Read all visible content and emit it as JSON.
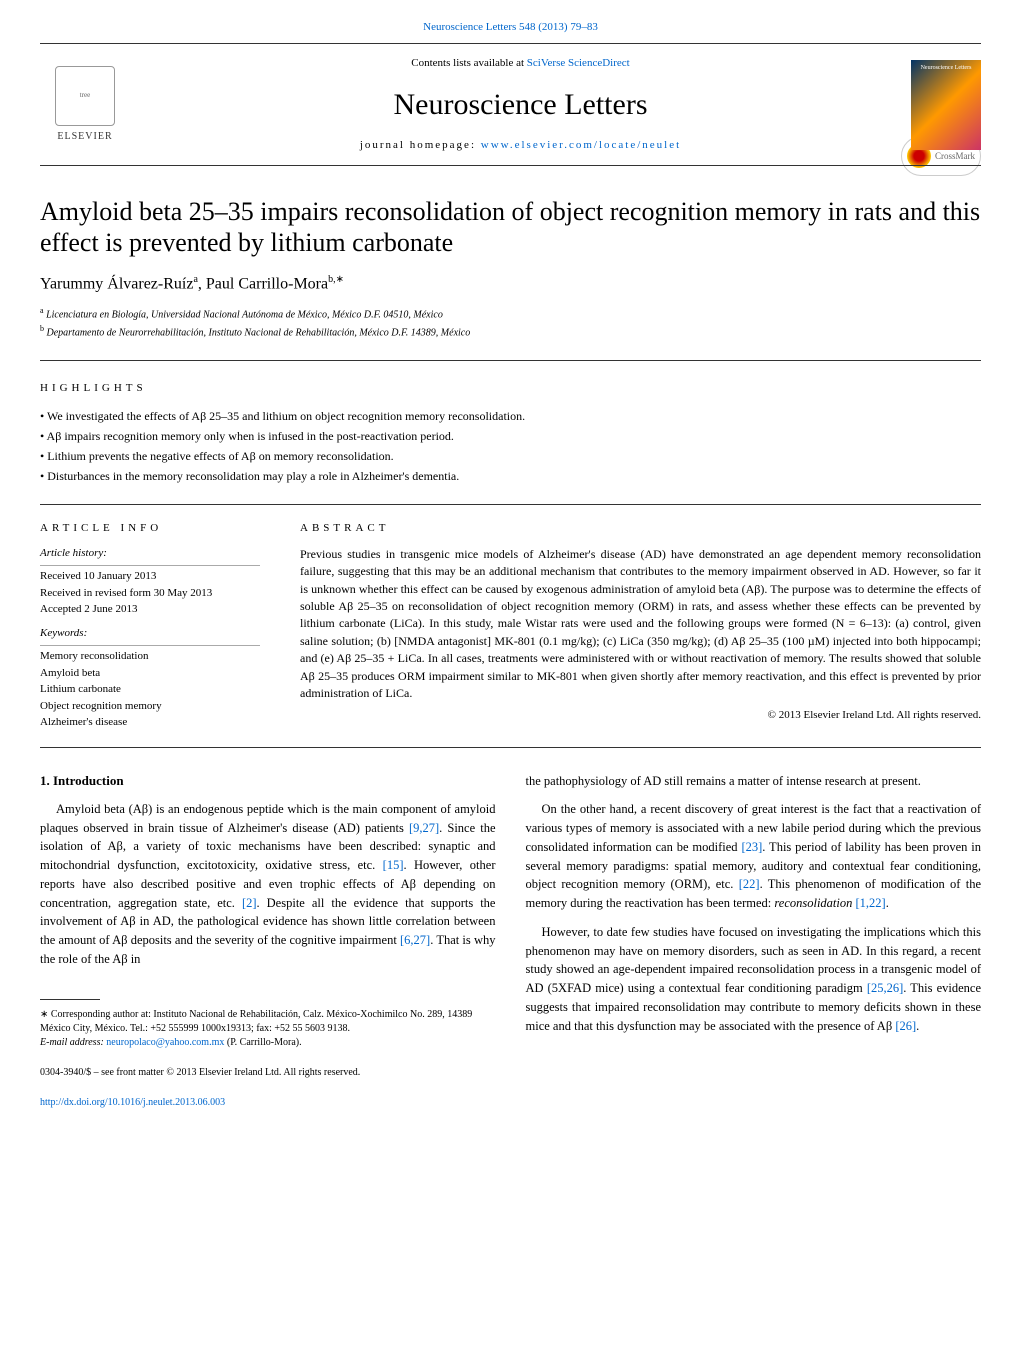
{
  "header": {
    "citation": "Neuroscience Letters 548 (2013) 79–83",
    "contents_prefix": "Contents lists available at ",
    "contents_link": "SciVerse ScienceDirect",
    "journal_title": "Neuroscience Letters",
    "homepage_prefix": "journal homepage: ",
    "homepage_url": "www.elsevier.com/locate/neulet",
    "elsevier_label": "ELSEVIER",
    "cover_label": "Neuroscience Letters",
    "crossmark_label": "CrossMark"
  },
  "article": {
    "title": "Amyloid beta 25–35 impairs reconsolidation of object recognition memory in rats and this effect is prevented by lithium carbonate",
    "authors": "Yarummy Álvarez-Ruíz",
    "author_a_sup": "a",
    "author_sep": ", ",
    "author_b": "Paul Carrillo-Mora",
    "author_b_sup": "b,∗",
    "affil_a_sup": "a",
    "affil_a": " Licenciatura en Biología, Universidad Nacional Autónoma de México, México D.F. 04510, México",
    "affil_b_sup": "b",
    "affil_b": " Departamento de Neurorrehabilitación, Instituto Nacional de Rehabilitación, México D.F. 14389, México"
  },
  "highlights": {
    "label": "HIGHLIGHTS",
    "items": [
      "We investigated the effects of Aβ 25–35 and lithium on object recognition memory reconsolidation.",
      "Aβ impairs recognition memory only when is infused in the post-reactivation period.",
      "Lithium prevents the negative effects of Aβ on memory reconsolidation.",
      "Disturbances in the memory reconsolidation may play a role in Alzheimer's dementia."
    ]
  },
  "info": {
    "heading": "ARTICLE INFO",
    "history_label": "Article history:",
    "received": "Received 10 January 2013",
    "revised": "Received in revised form 30 May 2013",
    "accepted": "Accepted 2 June 2013",
    "keywords_label": "Keywords:",
    "keywords": [
      "Memory reconsolidation",
      "Amyloid beta",
      "Lithium carbonate",
      "Object recognition memory",
      "Alzheimer's disease"
    ]
  },
  "abstract": {
    "label": "ABSTRACT",
    "text": "Previous studies in transgenic mice models of Alzheimer's disease (AD) have demonstrated an age dependent memory reconsolidation failure, suggesting that this may be an additional mechanism that contributes to the memory impairment observed in AD. However, so far it is unknown whether this effect can be caused by exogenous administration of amyloid beta (Aβ). The purpose was to determine the effects of soluble Aβ 25–35 on reconsolidation of object recognition memory (ORM) in rats, and assess whether these effects can be prevented by lithium carbonate (LiCa). In this study, male Wistar rats were used and the following groups were formed (N = 6–13): (a) control, given saline solution; (b) [NMDA antagonist] MK-801 (0.1 mg/kg); (c) LiCa (350 mg/kg); (d) Aβ 25–35 (100 µM) injected into both hippocampi; and (e) Aβ 25–35 + LiCa. In all cases, treatments were administered with or without reactivation of memory. The results showed that soluble Aβ 25–35 produces ORM impairment similar to MK-801 when given shortly after memory reactivation, and this effect is prevented by prior administration of LiCa.",
    "copyright": "© 2013 Elsevier Ireland Ltd. All rights reserved."
  },
  "intro": {
    "heading": "1. Introduction",
    "p1_a": "Amyloid beta (Aβ) is an endogenous peptide which is the main component of amyloid plaques observed in brain tissue of Alzheimer's disease (AD) patients ",
    "p1_ref1": "[9,27]",
    "p1_b": ". Since the isolation of Aβ, a variety of toxic mechanisms have been described: synaptic and mitochondrial dysfunction, excitotoxicity, oxidative stress, etc. ",
    "p1_ref2": "[15]",
    "p1_c": ". However, other reports have also described positive and even trophic effects of Aβ depending on concentration, aggregation state, etc. ",
    "p1_ref3": "[2]",
    "p1_d": ". Despite all the evidence that supports the involvement of Aβ in AD, the pathological evidence has shown little correlation between the amount of Aβ deposits and the severity of the cognitive impairment ",
    "p1_ref4": "[6,27]",
    "p1_e": ". That is why the role of the Aβ in",
    "p2": "the pathophysiology of AD still remains a matter of intense research at present.",
    "p3_a": "On the other hand, a recent discovery of great interest is the fact that a reactivation of various types of memory is associated with a new labile period during which the previous consolidated information can be modified ",
    "p3_ref1": "[23]",
    "p3_b": ". This period of lability has been proven in several memory paradigms: spatial memory, auditory and contextual fear conditioning, object recognition memory (ORM), etc. ",
    "p3_ref2": "[22]",
    "p3_c": ". This phenomenon of modification of the memory during the reactivation has been termed: ",
    "p3_term": "reconsolidation",
    "p3_d": " ",
    "p3_ref3": "[1,22]",
    "p3_e": ".",
    "p4_a": "However, to date few studies have focused on investigating the implications which this phenomenon may have on memory disorders, such as seen in AD. In this regard, a recent study showed an age-dependent impaired reconsolidation process in a transgenic model of AD (5XFAD mice) using a contextual fear conditioning paradigm ",
    "p4_ref1": "[25,26]",
    "p4_b": ". This evidence suggests that impaired reconsolidation may contribute to memory deficits shown in these mice and that this dysfunction may be associated with the presence of Aβ ",
    "p4_ref2": "[26]",
    "p4_c": "."
  },
  "footnotes": {
    "corr_star": "∗",
    "corr": " Corresponding author at: Instituto Nacional de Rehabilitación, Calz. México-Xochimilco No. 289, 14389 México City, México. Tel.: +52 555999 1000x19313; fax: +52 55 5603 9138.",
    "email_label": "E-mail address: ",
    "email": "neuropolaco@yahoo.com.mx",
    "email_author": " (P. Carrillo-Mora).",
    "issn": "0304-3940/$ – see front matter © 2013 Elsevier Ireland Ltd. All rights reserved.",
    "doi": "http://dx.doi.org/10.1016/j.neulet.2013.06.003"
  },
  "colors": {
    "link": "#0066cc",
    "rule": "#333333",
    "text": "#000000",
    "background": "#ffffff"
  },
  "typography": {
    "body_font": "Times New Roman, serif",
    "journal_title_pt": 30,
    "article_title_pt": 26,
    "authors_pt": 16,
    "body_pt": 12.5,
    "abstract_pt": 12,
    "info_pt": 11,
    "footnote_pt": 10
  }
}
